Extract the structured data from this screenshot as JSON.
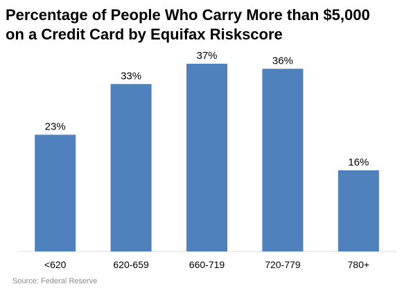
{
  "chart_data": {
    "type": "bar",
    "title_lines": [
      "Percentage of People Who Carry More than $5,000",
      "on a Credit Card by Equifax Riskscore"
    ],
    "categories": [
      "<620",
      "620-659",
      "660-719",
      "720-779",
      "780+"
    ],
    "values": [
      23,
      33,
      37,
      36,
      16
    ],
    "data_labels": [
      "23%",
      "33%",
      "37%",
      "36%",
      "16%"
    ],
    "unit": "%",
    "ylim": [
      0,
      40
    ],
    "grid": false,
    "legend": "none",
    "bar_color": "#4f81bd",
    "source": "Source: Federal Reserve"
  }
}
